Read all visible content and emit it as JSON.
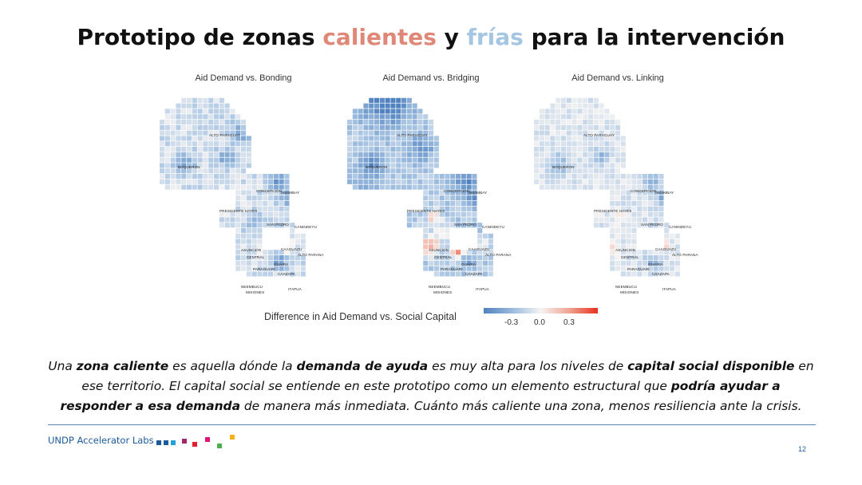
{
  "title": {
    "part1": "Prototipo de zonas ",
    "hot": "calientes",
    "part2": " y ",
    "cold": "frías",
    "part3": " para la intervención"
  },
  "colors": {
    "hot_title": "#e08878",
    "cold_title": "#a5c6e2",
    "scale_low": "#4f82bf",
    "scale_mid": "#f6f4f3",
    "scale_high": "#e8301f",
    "brand": "#1d5a9a"
  },
  "maps": [
    {
      "title": "Aid Demand vs. Bonding"
    },
    {
      "title": "Aid Demand vs. Bridging"
    },
    {
      "title": "Aid Demand vs. Linking"
    }
  ],
  "region_labels": {
    "alto_paraguay": "ALTO PARAGUAY",
    "boqueron": "BOQUERON",
    "concepcion": "CONCEPCION",
    "amambay": "AMAMBAY",
    "presidente_hayes": "PRESIDENTE HAYES",
    "san_pedro": "SAN PEDRO",
    "canindeyu": "CANINDEYU",
    "asuncion": "ASUNCION",
    "caaguazu": "CAAGUAZU",
    "central": "CENTRAL",
    "alto_parana": "ALTO PARANA",
    "guaira": "GUAIRA",
    "paraguari": "PARAGUARI",
    "caazapa": "CAAZAPA",
    "neembucu": "NEEMBUCU",
    "misiones": "MISIONES",
    "itapua": "ITAPUA"
  },
  "legend": {
    "title": "Difference in Aid Demand vs. Social Capital",
    "ticks": [
      "-0.3",
      "0.0",
      "0.3"
    ]
  },
  "description": {
    "t1": "Una ",
    "b1": "zona caliente",
    "t2": " es aquella dónde la ",
    "b2": "demanda de ayuda",
    "t3": " es muy alta para los niveles de ",
    "b3": "capital social disponible",
    "t4": " en ese territorio. El capital social se entiende en este prototipo como un elemento estructural que ",
    "b4": "podría ayudar a responder a esa demanda",
    "t5": " de manera más inmediata. Cuánto más caliente una zona, menos resiliencia ante la crisis."
  },
  "footer": {
    "brand": "UNDP Accelerator Labs",
    "page_number": "12"
  },
  "brand_square_colors": [
    "#1d5a9a",
    "#1d5a9a",
    "#22a0d8",
    "#a3286b",
    "#e0202a",
    "#e2147a",
    "#4bb04a",
    "#f5b31a"
  ]
}
